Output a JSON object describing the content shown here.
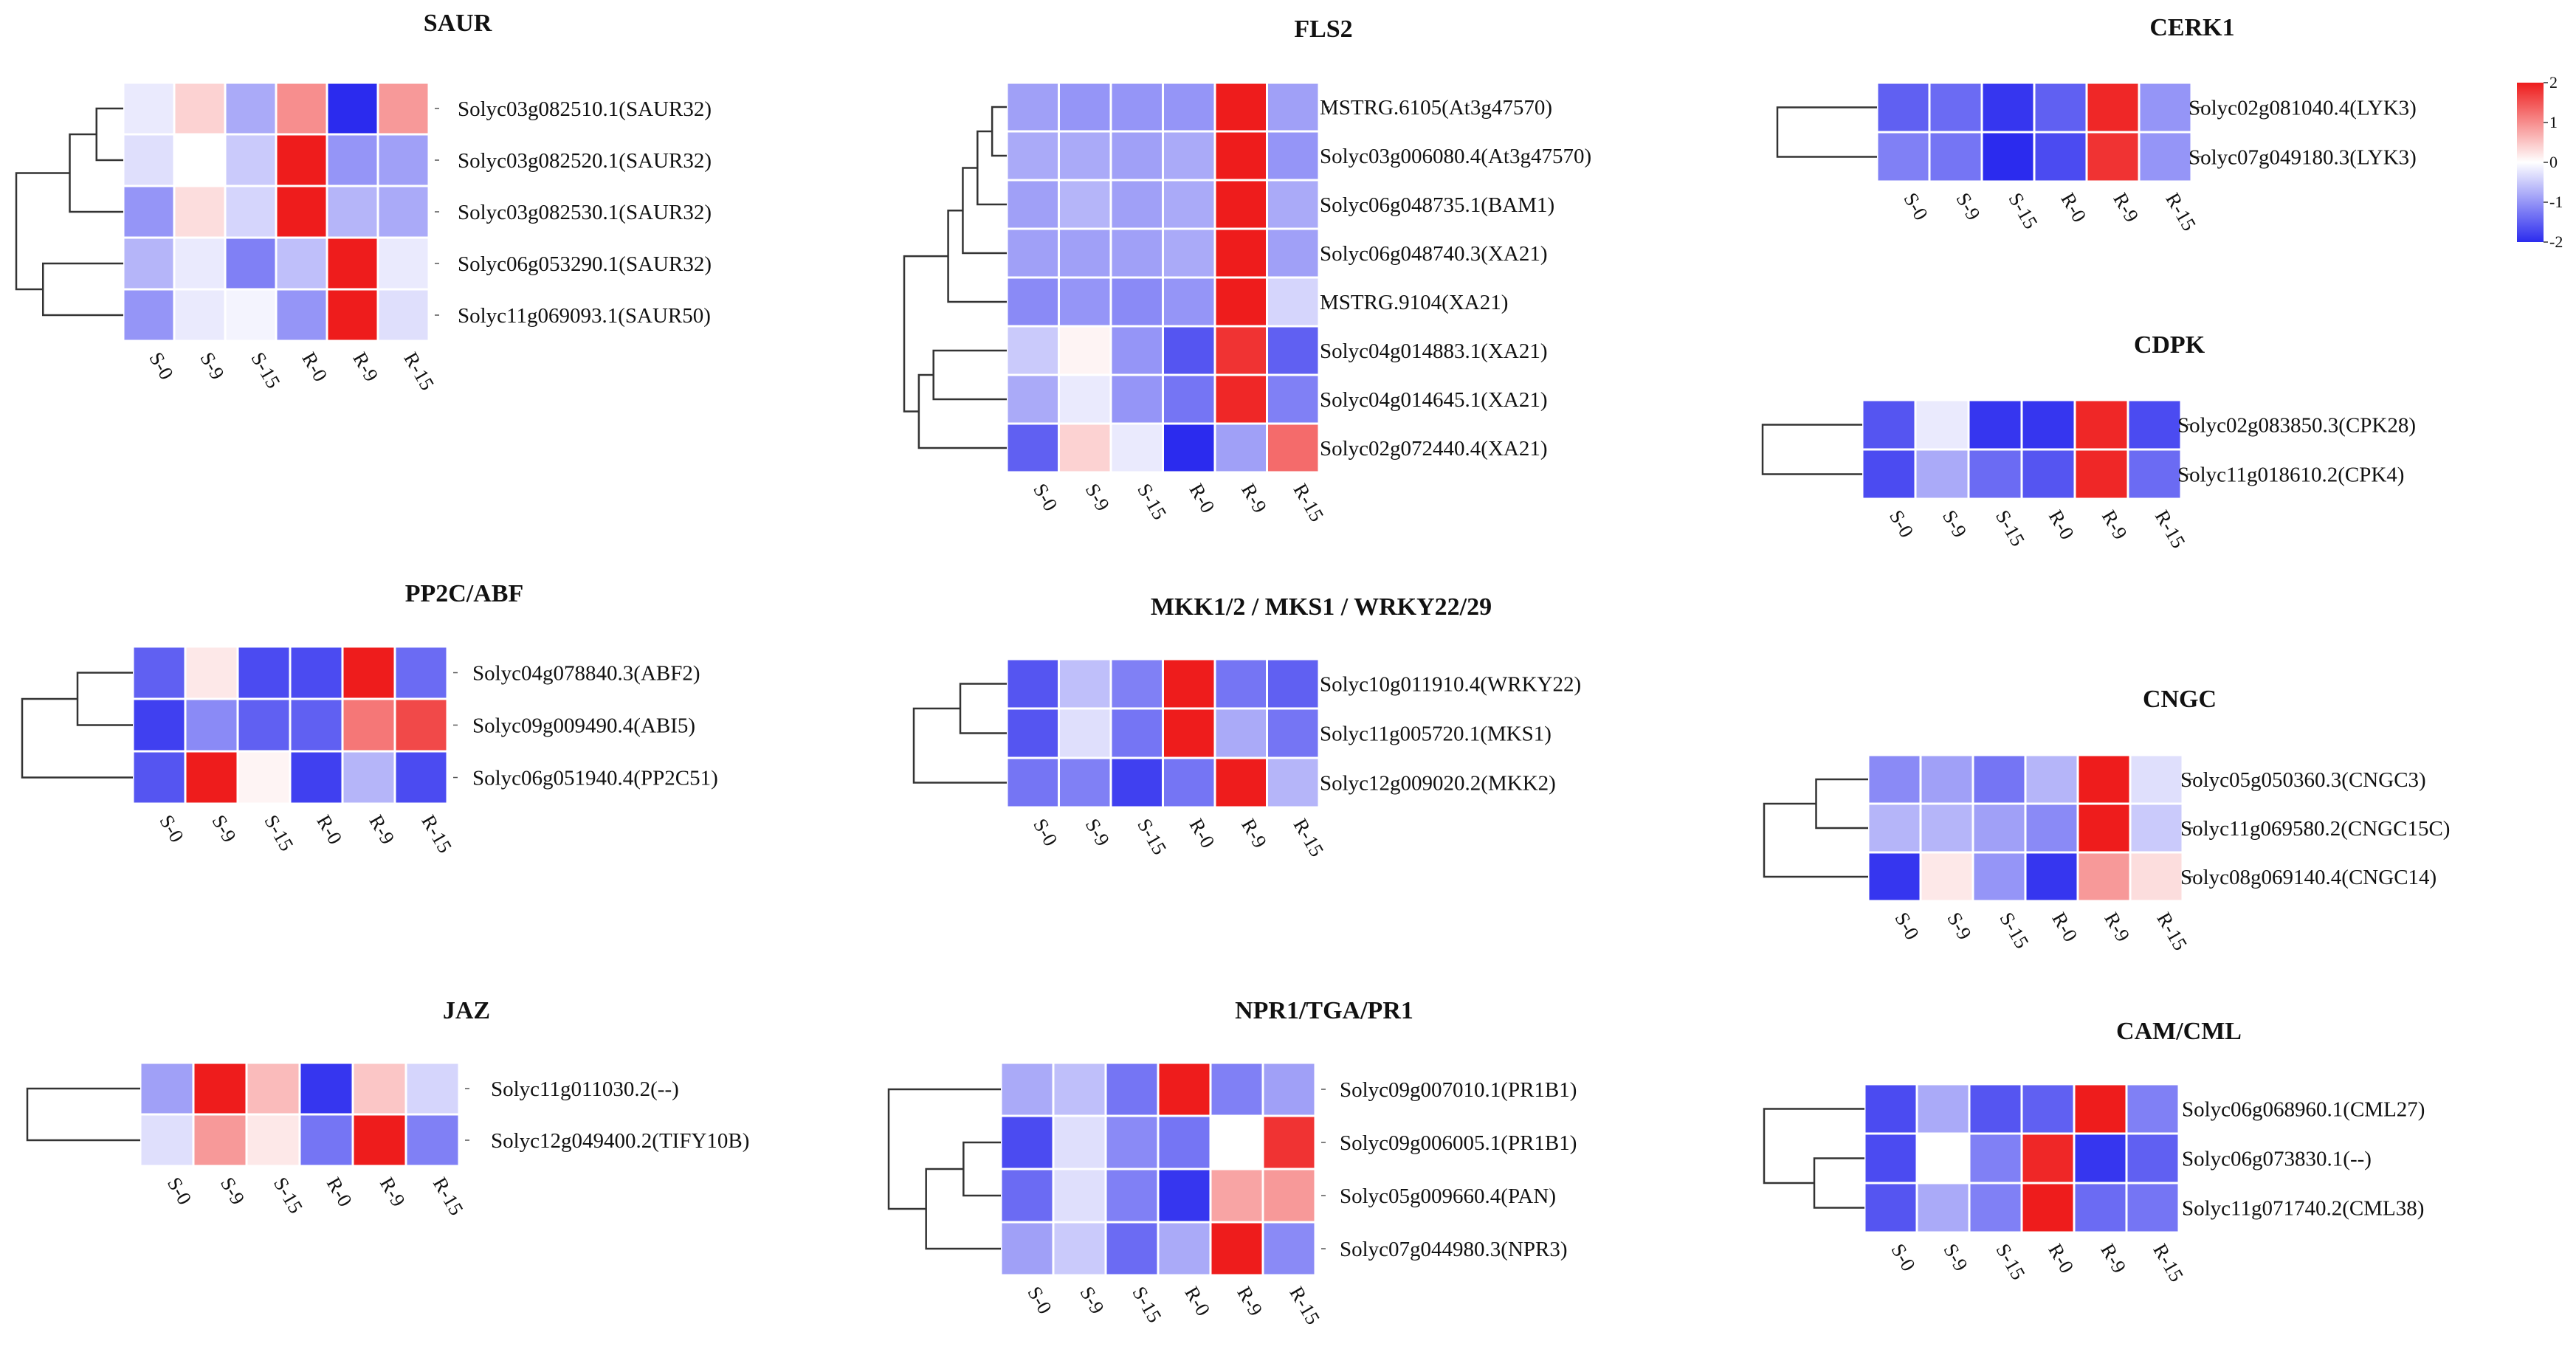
{
  "chart_data": [
    {
      "type": "heatmap",
      "title": "SAUR",
      "columns": [
        "S-0",
        "S-9",
        "S-15",
        "R-0",
        "R-9",
        "R-15"
      ],
      "rows": [
        "Solyc03g082510.1(SAUR32)",
        "Solyc03g082520.1(SAUR32)",
        "Solyc03g082530.1(SAUR32)",
        "Solyc06g053290.1(SAUR32)",
        "Solyc11g069093.1(SAUR50)"
      ],
      "values": [
        [
          -0.2,
          0.4,
          -0.8,
          1.0,
          -2.0,
          0.9
        ],
        [
          -0.3,
          0.0,
          -0.5,
          2.0,
          -1.0,
          -0.9
        ],
        [
          -1.0,
          0.3,
          -0.4,
          2.0,
          -0.7,
          -0.8
        ],
        [
          -0.7,
          -0.2,
          -1.2,
          -0.6,
          2.0,
          -0.2
        ],
        [
          -1.0,
          -0.2,
          -0.1,
          -1.0,
          2.0,
          -0.3
        ]
      ],
      "tree": [
        [
          0,
          1
        ],
        [
          5,
          2
        ],
        [
          3,
          4
        ],
        [
          6,
          7
        ]
      ]
    },
    {
      "type": "heatmap",
      "title": "FLS2",
      "columns": [
        "S-0",
        "S-9",
        "S-15",
        "R-0",
        "R-9",
        "R-15"
      ],
      "rows": [
        "MSTRG.6105(At3g47570)",
        "Solyc03g006080.4(At3g47570)",
        "Solyc06g048735.1(BAM1)",
        "Solyc06g048740.3(XA21)",
        "MSTRG.9104(XA21)",
        "Solyc04g014883.1(XA21)",
        "Solyc04g014645.1(XA21)",
        "Solyc02g072440.4(XA21)"
      ],
      "values": [
        [
          -0.9,
          -1.0,
          -1.0,
          -1.0,
          2.0,
          -0.9
        ],
        [
          -0.8,
          -0.8,
          -0.9,
          -0.8,
          2.0,
          -1.0
        ],
        [
          -0.9,
          -0.7,
          -0.9,
          -0.8,
          2.0,
          -0.8
        ],
        [
          -0.9,
          -0.9,
          -0.9,
          -0.8,
          2.0,
          -0.9
        ],
        [
          -1.1,
          -1.0,
          -1.1,
          -1.0,
          2.0,
          -0.4
        ],
        [
          -0.5,
          0.1,
          -1.0,
          -1.6,
          1.8,
          -1.5
        ],
        [
          -0.8,
          -0.2,
          -1.0,
          -1.3,
          1.9,
          -1.2
        ],
        [
          -1.5,
          0.4,
          -0.2,
          -2.0,
          -0.9,
          1.3
        ]
      ],
      "tree": [
        [
          0,
          1
        ],
        [
          8,
          2
        ],
        [
          9,
          3
        ],
        [
          10,
          4
        ],
        [
          5,
          6
        ],
        [
          12,
          7
        ],
        [
          11,
          13
        ]
      ]
    },
    {
      "type": "heatmap",
      "title": "CERK1",
      "columns": [
        "S-0",
        "S-9",
        "S-15",
        "R-0",
        "R-9",
        "R-15"
      ],
      "rows": [
        "Solyc02g081040.4(LYK3)",
        "Solyc07g049180.3(LYK3)"
      ],
      "values": [
        [
          -1.5,
          -1.4,
          -1.9,
          -1.5,
          1.9,
          -1.0
        ],
        [
          -1.2,
          -1.3,
          -2.0,
          -1.7,
          1.8,
          -1.0
        ]
      ],
      "tree": [
        [
          0,
          1
        ]
      ]
    },
    {
      "type": "heatmap",
      "title": "CDPK",
      "columns": [
        "S-0",
        "S-9",
        "S-15",
        "R-0",
        "R-9",
        "R-15"
      ],
      "rows": [
        "Solyc02g083850.3(CPK28)",
        "Solyc11g018610.2(CPK4)"
      ],
      "values": [
        [
          -1.6,
          -0.2,
          -1.9,
          -1.9,
          1.9,
          -1.7
        ],
        [
          -1.7,
          -0.8,
          -1.4,
          -1.6,
          1.9,
          -1.4
        ]
      ],
      "tree": [
        [
          0,
          1
        ]
      ]
    },
    {
      "type": "heatmap",
      "title": "PP2C/ABF",
      "columns": [
        "S-0",
        "S-9",
        "S-15",
        "R-0",
        "R-9",
        "R-15"
      ],
      "rows": [
        "Solyc04g078840.3(ABF2)",
        "Solyc09g009490.4(ABI5)",
        "Solyc06g051940.4(PP2C51)"
      ],
      "values": [
        [
          -1.5,
          0.2,
          -1.7,
          -1.7,
          2.0,
          -1.4
        ],
        [
          -1.8,
          -1.1,
          -1.5,
          -1.5,
          1.2,
          1.6
        ],
        [
          -1.6,
          2.0,
          0.1,
          -1.8,
          -0.7,
          -1.7
        ]
      ],
      "tree": [
        [
          0,
          1
        ],
        [
          3,
          2
        ]
      ]
    },
    {
      "type": "heatmap",
      "title": "MKK1/2 / MKS1 / WRKY22/29",
      "columns": [
        "S-0",
        "S-9",
        "S-15",
        "R-0",
        "R-9",
        "R-15"
      ],
      "rows": [
        "Solyc10g011910.4(WRKY22)",
        "Solyc11g005720.1(MKS1)",
        "Solyc12g009020.2(MKK2)"
      ],
      "values": [
        [
          -1.6,
          -0.6,
          -1.2,
          2.0,
          -1.3,
          -1.5
        ],
        [
          -1.6,
          -0.3,
          -1.3,
          2.0,
          -0.8,
          -1.3
        ],
        [
          -1.3,
          -1.2,
          -1.8,
          -1.3,
          2.0,
          -0.7
        ]
      ],
      "tree": [
        [
          0,
          1
        ],
        [
          3,
          2
        ]
      ]
    },
    {
      "type": "heatmap",
      "title": "CNGC",
      "columns": [
        "S-0",
        "S-9",
        "S-15",
        "R-0",
        "R-9",
        "R-15"
      ],
      "rows": [
        "Solyc05g050360.3(CNGC3)",
        "Solyc11g069580.2(CNGC15C)",
        "Solyc08g069140.4(CNGC14)"
      ],
      "values": [
        [
          -1.1,
          -0.9,
          -1.3,
          -0.7,
          2.0,
          -0.3
        ],
        [
          -0.7,
          -0.7,
          -0.9,
          -1.1,
          2.0,
          -0.5
        ],
        [
          -1.9,
          0.2,
          -1.0,
          -1.9,
          0.9,
          0.3
        ]
      ],
      "tree": [
        [
          0,
          1
        ],
        [
          3,
          2
        ]
      ]
    },
    {
      "type": "heatmap",
      "title": "JAZ",
      "columns": [
        "S-0",
        "S-9",
        "S-15",
        "R-0",
        "R-9",
        "R-15"
      ],
      "rows": [
        "Solyc11g011030.2(--)",
        "Solyc12g049400.2(TIFY10B)"
      ],
      "values": [
        [
          -0.9,
          2.0,
          0.6,
          -1.9,
          0.5,
          -0.4
        ],
        [
          -0.3,
          0.9,
          0.2,
          -1.3,
          2.0,
          -1.2
        ]
      ],
      "tree": [
        [
          0,
          1
        ]
      ]
    },
    {
      "type": "heatmap",
      "title": "NPR1/TGA/PR1",
      "columns": [
        "S-0",
        "S-9",
        "S-15",
        "R-0",
        "R-9",
        "R-15"
      ],
      "rows": [
        "Solyc09g007010.1(PR1B1)",
        "Solyc09g006005.1(PR1B1)",
        "Solyc05g009660.4(PAN)",
        "Solyc07g044980.3(NPR3)"
      ],
      "values": [
        [
          -0.8,
          -0.6,
          -1.3,
          2.0,
          -1.2,
          -0.9
        ],
        [
          -1.7,
          -0.3,
          -1.1,
          -1.3,
          0.0,
          1.8
        ],
        [
          -1.4,
          -0.3,
          -1.2,
          -1.9,
          0.8,
          0.9
        ],
        [
          -0.9,
          -0.5,
          -1.4,
          -0.8,
          2.0,
          -1.1
        ]
      ],
      "tree": [
        [
          1,
          2
        ],
        [
          4,
          3
        ],
        [
          0,
          5
        ]
      ]
    },
    {
      "type": "heatmap",
      "title": "CAM/CML",
      "columns": [
        "S-0",
        "S-9",
        "S-15",
        "R-0",
        "R-9",
        "R-15"
      ],
      "rows": [
        "Solyc06g068960.1(CML27)",
        "Solyc06g073830.1(--)",
        "Solyc11g071740.2(CML38)"
      ],
      "values": [
        [
          -1.7,
          -0.8,
          -1.6,
          -1.5,
          2.0,
          -1.2
        ],
        [
          -1.7,
          0.0,
          -1.2,
          1.9,
          -1.9,
          -1.5
        ],
        [
          -1.6,
          -0.8,
          -1.2,
          2.0,
          -1.4,
          -1.3
        ]
      ],
      "tree": [
        [
          1,
          2
        ],
        [
          0,
          3
        ]
      ]
    }
  ],
  "legend": {
    "ticks": [
      {
        "value": 2,
        "label": "2"
      },
      {
        "value": 1,
        "label": "1"
      },
      {
        "value": 0,
        "label": "0"
      },
      {
        "value": -1,
        "label": "-1"
      },
      {
        "value": -2,
        "label": "-2"
      }
    ],
    "min": -2,
    "max": 2
  },
  "colors": {
    "low": "#2b2bee",
    "mid": "#ffffff",
    "high": "#ee1c1c"
  }
}
